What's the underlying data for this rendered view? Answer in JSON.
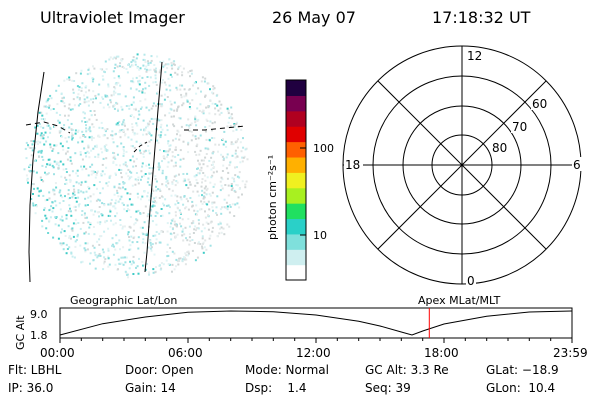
{
  "header": {
    "instrument": "Ultraviolet Imager",
    "date": "26 May 07",
    "time": "17:18:32 UT"
  },
  "colorbar": {
    "label": "photon cm⁻²s⁻¹",
    "ticks": [
      "10",
      "100"
    ],
    "scale": "log",
    "colors": [
      "#ffffff",
      "#cfeff0",
      "#7fe0dc",
      "#2ad0c8",
      "#20e060",
      "#a8f020",
      "#f0f020",
      "#ffb000",
      "#ff6000",
      "#e00000",
      "#b00020",
      "#780050",
      "#200040"
    ]
  },
  "polar_plot": {
    "mlt_labels": [
      "12",
      "18",
      "6",
      "0"
    ],
    "lat_labels": [
      "60",
      "70",
      "80"
    ]
  },
  "timeline": {
    "ylabel": "GC Alt",
    "yticks": [
      "9.0",
      "1.8"
    ],
    "left_label": "Geographic Lat/Lon",
    "right_label": "Apex MLat/MLT",
    "xticks": [
      "00:00",
      "06:00",
      "12:00",
      "18:00",
      "23:59"
    ]
  },
  "chart_data": {
    "type": "line",
    "title": "",
    "xlabel": "",
    "ylabel": "GC Alt",
    "x_hours": [
      0,
      2,
      4,
      6,
      8,
      10,
      12,
      14,
      15,
      16,
      16.5,
      17,
      18,
      20,
      22,
      23.98
    ],
    "y_values": [
      1.8,
      5.2,
      7.2,
      8.6,
      9.0,
      8.8,
      7.8,
      5.9,
      4.5,
      2.7,
      1.8,
      3.0,
      5.1,
      7.4,
      8.7,
      9.0
    ],
    "ylim": [
      1.8,
      9.0
    ],
    "current_time_hours": 17.31,
    "current_marker_color": "#ff0000"
  },
  "status": {
    "flt": "Flt: LBHL",
    "door": "Door: Open",
    "mode": "Mode: Normal",
    "gc_alt": "GC Alt: 3.3 Re",
    "glat": "GLat: −18.9",
    "ip": "IP: 36.0",
    "gain": "Gain: 14",
    "dsp": "Dsp:    1.4",
    "seq": "Seq: 39",
    "glon": "GLon:  10.4"
  }
}
